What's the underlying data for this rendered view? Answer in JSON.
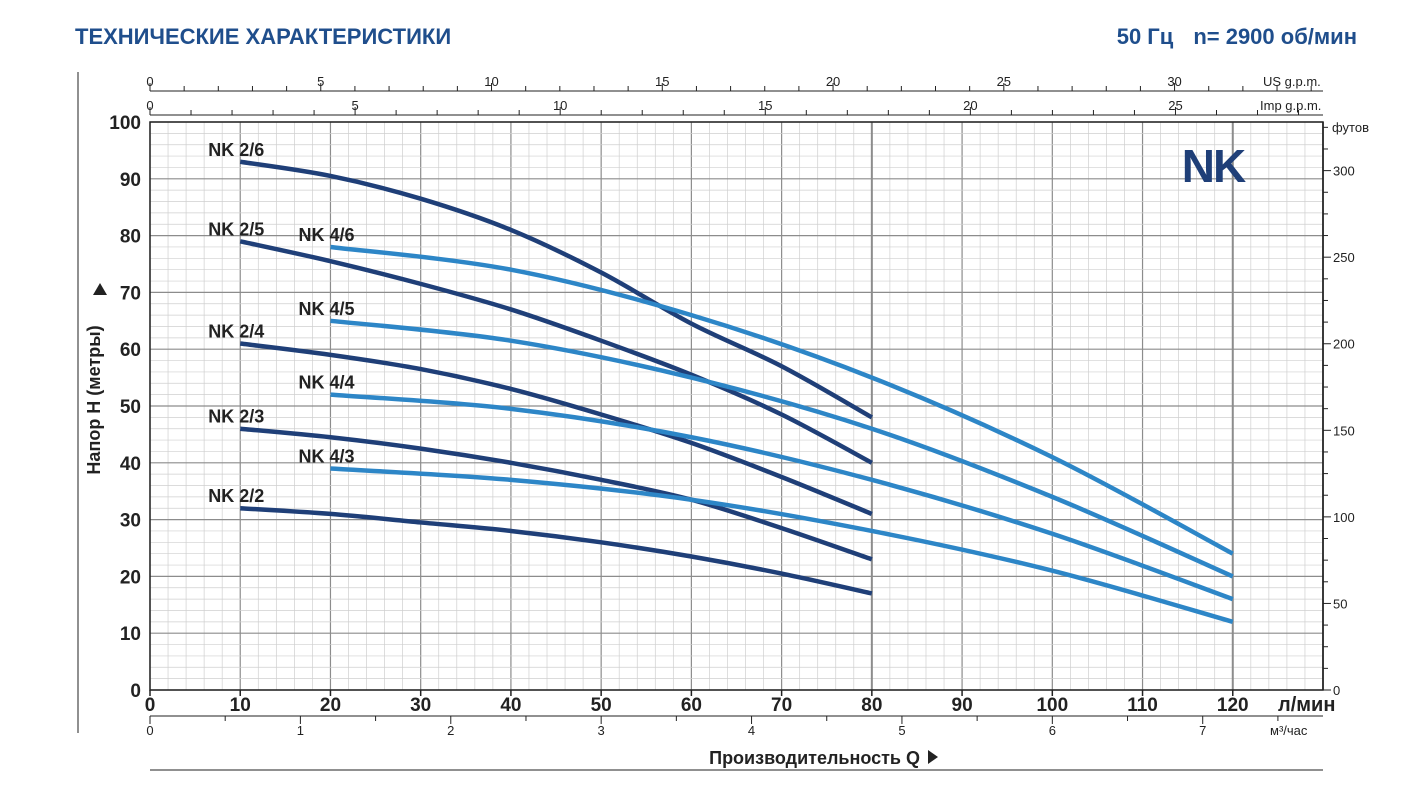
{
  "header": {
    "title": "ТЕХНИЧЕСКИЕ ХАРАКТЕРИСТИКИ",
    "frequency": "50 Гц",
    "speed": "n= 2900 об/мин"
  },
  "colors": {
    "nk2": "#1f3f78",
    "nk4": "#2d86c7",
    "logo": "#1f3f78",
    "title": "#1f4e8c"
  },
  "chart_data": {
    "type": "line",
    "logo": "NK",
    "ylabel": "Напор Н (метры)",
    "xlabel": "Производительность Q",
    "xlim": [
      0,
      130
    ],
    "ylim": [
      0,
      100
    ],
    "primary_x_unit": "л/мин",
    "primary_x_ticks": [
      0,
      10,
      20,
      30,
      40,
      50,
      60,
      70,
      80,
      90,
      100,
      110,
      120
    ],
    "y_ticks": [
      0,
      10,
      20,
      30,
      40,
      50,
      60,
      70,
      80,
      90,
      100
    ],
    "secondary_axes": {
      "us_gpm": {
        "label": "US g.p.m.",
        "ticks": [
          0,
          5,
          10,
          15,
          20,
          25,
          30
        ]
      },
      "imp_gpm": {
        "label": "Imp g.p.m.",
        "ticks": [
          0,
          5,
          10,
          15,
          20,
          25
        ]
      },
      "m3h": {
        "label": "м³/час",
        "ticks": [
          0,
          1,
          2,
          3,
          4,
          5,
          6,
          7
        ]
      },
      "feet": {
        "label": "футов",
        "ticks": [
          0,
          50,
          100,
          150,
          200,
          250,
          300
        ]
      }
    },
    "series": [
      {
        "name": "NK 2/6",
        "group": "nk2",
        "x": [
          10,
          20,
          30,
          40,
          50,
          60,
          70,
          80
        ],
        "y": [
          93,
          90.5,
          86.5,
          81,
          73.5,
          64.5,
          57,
          48
        ]
      },
      {
        "name": "NK 2/5",
        "group": "nk2",
        "x": [
          10,
          20,
          30,
          40,
          50,
          60,
          70,
          80
        ],
        "y": [
          79,
          75.5,
          71.5,
          67,
          61.5,
          55.5,
          48.5,
          40
        ]
      },
      {
        "name": "NK 2/4",
        "group": "nk2",
        "x": [
          10,
          20,
          30,
          40,
          50,
          60,
          70,
          80
        ],
        "y": [
          61,
          59,
          56.5,
          53,
          48.5,
          43.5,
          37.5,
          31
        ]
      },
      {
        "name": "NK 2/3",
        "group": "nk2",
        "x": [
          10,
          20,
          30,
          40,
          50,
          60,
          70,
          80
        ],
        "y": [
          46,
          44.5,
          42.5,
          40,
          37,
          33.5,
          28.5,
          23
        ]
      },
      {
        "name": "NK 2/2",
        "group": "nk2",
        "x": [
          10,
          20,
          30,
          40,
          50,
          60,
          70,
          80
        ],
        "y": [
          32,
          31,
          29.5,
          28,
          26,
          23.5,
          20.5,
          17
        ]
      },
      {
        "name": "NK 4/6",
        "group": "nk4",
        "x": [
          20,
          40,
          60,
          80,
          100,
          120
        ],
        "y": [
          78,
          74,
          66,
          55,
          41,
          24
        ]
      },
      {
        "name": "NK 4/5",
        "group": "nk4",
        "x": [
          20,
          40,
          60,
          80,
          100,
          120
        ],
        "y": [
          65,
          61.5,
          55,
          46,
          34,
          20
        ]
      },
      {
        "name": "NK 4/4",
        "group": "nk4",
        "x": [
          20,
          40,
          60,
          80,
          100,
          120
        ],
        "y": [
          52,
          49.5,
          44.5,
          37,
          27.5,
          16
        ]
      },
      {
        "name": "NK 4/3",
        "group": "nk4",
        "x": [
          20,
          40,
          60,
          80,
          100,
          120
        ],
        "y": [
          39,
          37,
          33.5,
          28,
          21,
          12
        ]
      }
    ]
  }
}
